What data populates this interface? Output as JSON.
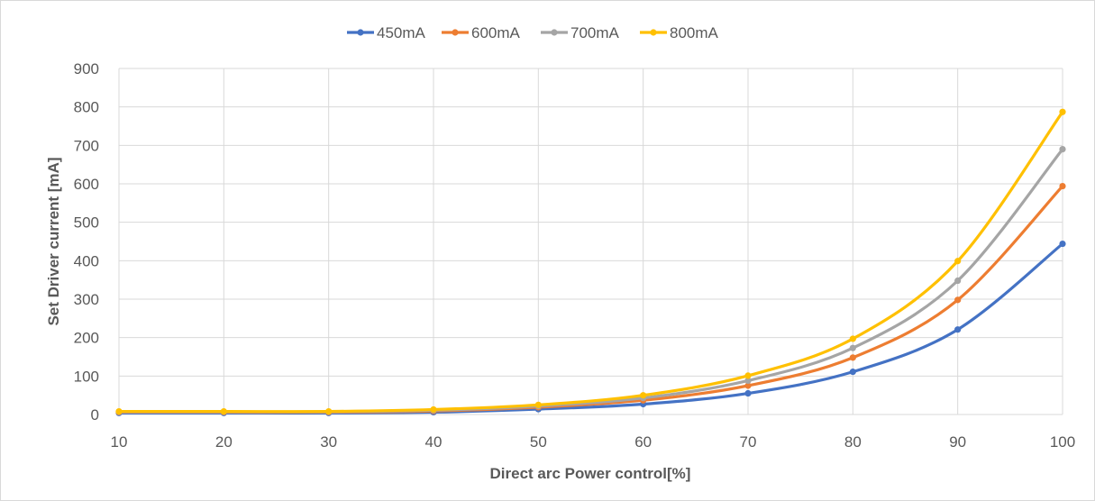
{
  "chart_data": {
    "type": "line",
    "smooth": true,
    "xlabel": "Direct arc Power control[%]",
    "ylabel": "Set Driver current [mA]",
    "x": [
      10,
      20,
      30,
      40,
      50,
      60,
      70,
      80,
      90,
      100
    ],
    "xlim": [
      10,
      100
    ],
    "ylim": [
      0,
      900
    ],
    "yticks": [
      0,
      100,
      200,
      300,
      400,
      500,
      600,
      700,
      800,
      900
    ],
    "xticks": [
      10,
      20,
      30,
      40,
      50,
      60,
      70,
      80,
      90,
      100
    ],
    "grid": true,
    "legend_position": "top",
    "series": [
      {
        "name": "450mA",
        "color": "#4472c4",
        "values": [
          4,
          4,
          4,
          6,
          14,
          27,
          55,
          111,
          221,
          444
        ]
      },
      {
        "name": "600mA",
        "color": "#ed7d31",
        "values": [
          6,
          6,
          6,
          9,
          19,
          37,
          75,
          148,
          298,
          594
        ]
      },
      {
        "name": "700mA",
        "color": "#a5a5a5",
        "values": [
          7,
          7,
          7,
          11,
          22,
          43,
          88,
          173,
          348,
          690
        ]
      },
      {
        "name": "800mA",
        "color": "#ffc000",
        "values": [
          8,
          8,
          8,
          13,
          25,
          50,
          101,
          197,
          399,
          787
        ]
      }
    ]
  }
}
